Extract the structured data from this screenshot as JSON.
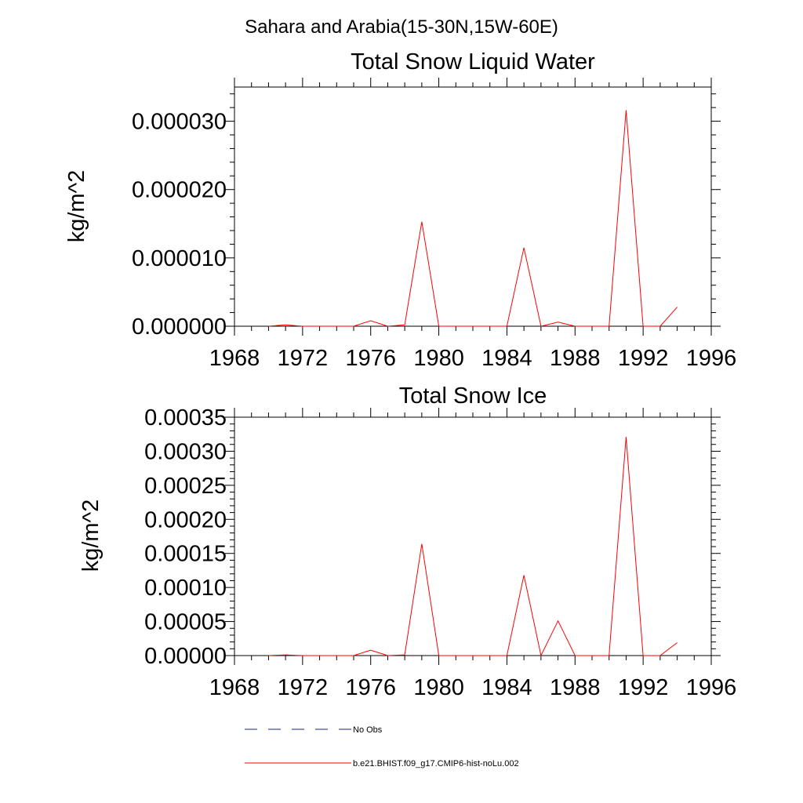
{
  "title": "Sahara and Arabia(15-30N,15W-60E)",
  "colors": {
    "model": "#ff0000",
    "obs": "#1a237e",
    "axis": "#000000"
  },
  "legend": {
    "obs_label": "No Obs",
    "model_label": "b.e21.BHIST.f09_g17.CMIP6-hist-noLu.002",
    "placement": "bottom-center"
  },
  "chart_data": [
    {
      "type": "line",
      "title": "Total Snow Liquid Water",
      "ylabel": "kg/m^2",
      "xlabel": "",
      "xlim": [
        1968,
        1996
      ],
      "ylim": [
        0,
        3.5e-05
      ],
      "x_ticks": [
        "1968",
        "1972",
        "1976",
        "1980",
        "1984",
        "1988",
        "1992",
        "1996"
      ],
      "y_ticks": [
        "0.000000",
        "0.000010",
        "0.000020",
        "0.000030"
      ],
      "y_tick_values": [
        0,
        1e-05,
        2e-05,
        3e-05
      ],
      "grid": false,
      "series": [
        {
          "name": "b.e21.BHIST.f09_g17.CMIP6-hist-noLu.002",
          "x": [
            1970,
            1971,
            1972,
            1973,
            1974,
            1975,
            1976,
            1977,
            1978,
            1979,
            1980,
            1981,
            1982,
            1983,
            1984,
            1985,
            1986,
            1987,
            1988,
            1989,
            1990,
            1991,
            1992,
            1993,
            1994
          ],
          "values": [
            0,
            2e-07,
            0,
            0,
            0,
            0,
            8e-07,
            0,
            2e-07,
            1.53e-05,
            0,
            0,
            0,
            0,
            0,
            1.15e-05,
            0,
            6e-07,
            0,
            0,
            0,
            3.16e-05,
            0,
            0,
            2.8e-06
          ]
        }
      ]
    },
    {
      "type": "line",
      "title": "Total Snow Ice",
      "ylabel": "kg/m^2",
      "xlabel": "",
      "xlim": [
        1968,
        1996
      ],
      "ylim": [
        0,
        0.00035
      ],
      "x_ticks": [
        "1968",
        "1972",
        "1976",
        "1980",
        "1984",
        "1988",
        "1992",
        "1996"
      ],
      "y_ticks": [
        "0.00000",
        "0.00005",
        "0.00010",
        "0.00015",
        "0.00020",
        "0.00025",
        "0.00030",
        "0.00035"
      ],
      "y_tick_values": [
        0,
        5e-05,
        0.0001,
        0.00015,
        0.0002,
        0.00025,
        0.0003,
        0.00035
      ],
      "grid": false,
      "series": [
        {
          "name": "b.e21.BHIST.f09_g17.CMIP6-hist-noLu.002",
          "x": [
            1970,
            1971,
            1972,
            1973,
            1974,
            1975,
            1976,
            1977,
            1978,
            1979,
            1980,
            1981,
            1982,
            1983,
            1984,
            1985,
            1986,
            1987,
            1988,
            1989,
            1990,
            1991,
            1992,
            1993,
            1994
          ],
          "values": [
            0,
            1e-06,
            0,
            0,
            0,
            0,
            8e-06,
            0,
            1e-06,
            0.000164,
            0,
            0,
            0,
            0,
            0,
            0.000118,
            0,
            5.1e-05,
            0,
            0,
            0,
            0.000321,
            0,
            0,
            1.9e-05
          ]
        }
      ]
    }
  ]
}
